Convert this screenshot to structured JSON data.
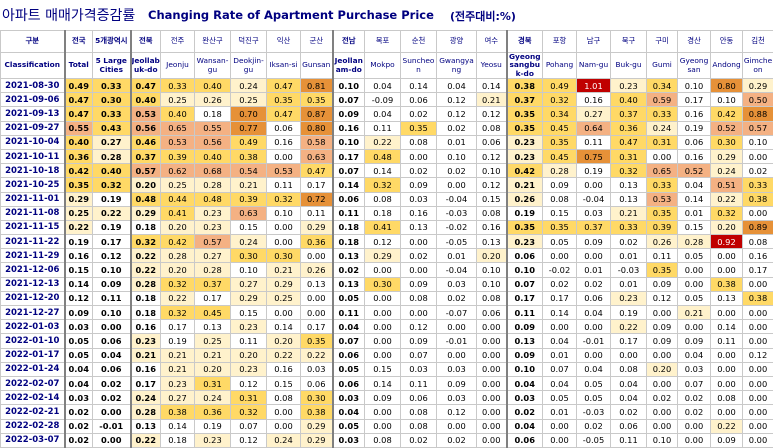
{
  "title": {
    "korean": "아파트 매매가격증감률",
    "english": "Changing Rate of Apartment Purchase Price",
    "unit": "(전주대비:%)"
  },
  "header": {
    "row1": [
      "구분",
      "전국",
      "5개광역시",
      "전북",
      "전주",
      "완산구",
      "덕진구",
      "익산",
      "군산",
      "전남",
      "목포",
      "순천",
      "광양",
      "여수",
      "경북",
      "포항",
      "남구",
      "북구",
      "구미",
      "경산",
      "안동",
      "김천"
    ],
    "row2": [
      "Classification",
      "Total",
      "5 Large Cities",
      "Jeollabuk-do",
      "Jeonju",
      "Wansan-gu",
      "Deokjin-gu",
      "Iksan-si",
      "Gunsan",
      "Jeollanam-do",
      "Mokpo",
      "Suncheon",
      "Gwangyang",
      "Yeosu",
      "Gyeongsangbuk-do",
      "Pohang",
      "Nam-gu",
      "Buk-gu",
      "Gumi",
      "Gyeongsan",
      "Andong",
      "Gimcheon"
    ]
  },
  "rows": [
    {
      "date": "2021-08-30",
      "values": [
        "0.49",
        "0.33",
        "0.47",
        "0.33",
        "0.40",
        "0.24",
        "0.47",
        "0.81",
        "0.10",
        "0.04",
        "0.14",
        "0.04",
        "0.14",
        "0.38",
        "0.49",
        "1.01",
        "0.23",
        "0.34",
        "0.10",
        "0.80",
        "0.29"
      ]
    },
    {
      "date": "2021-09-06",
      "values": [
        "0.47",
        "0.30",
        "0.40",
        "0.25",
        "0.26",
        "0.25",
        "0.35",
        "0.35",
        "0.07",
        "-0.09",
        "0.06",
        "0.12",
        "0.21",
        "0.37",
        "0.32",
        "0.16",
        "0.40",
        "0.59",
        "0.17",
        "0.10",
        "0.50"
      ]
    },
    {
      "date": "2021-09-13",
      "values": [
        "0.47",
        "0.33",
        "0.53",
        "0.40",
        "0.18",
        "0.70",
        "0.47",
        "0.87",
        "0.09",
        "0.04",
        "0.02",
        "0.12",
        "0.12",
        "0.35",
        "0.34",
        "0.27",
        "0.37",
        "0.33",
        "0.16",
        "0.42",
        "0.88"
      ]
    },
    {
      "date": "2021-09-27",
      "values": [
        "0.55",
        "0.43",
        "0.56",
        "0.65",
        "0.55",
        "0.77",
        "0.06",
        "0.80",
        "0.16",
        "0.11",
        "0.35",
        "0.02",
        "0.08",
        "0.35",
        "0.45",
        "0.64",
        "0.36",
        "0.24",
        "0.19",
        "0.52",
        "0.57"
      ]
    },
    {
      "date": "2021-10-04",
      "values": [
        "0.40",
        "0.27",
        "0.46",
        "0.53",
        "0.56",
        "0.49",
        "0.16",
        "0.58",
        "0.10",
        "0.22",
        "0.08",
        "0.01",
        "0.06",
        "0.23",
        "0.35",
        "0.11",
        "0.47",
        "0.31",
        "0.06",
        "0.30",
        "0.10"
      ]
    },
    {
      "date": "2021-10-11",
      "values": [
        "0.36",
        "0.28",
        "0.37",
        "0.39",
        "0.40",
        "0.38",
        "0.00",
        "0.63",
        "0.17",
        "0.48",
        "0.00",
        "0.10",
        "0.12",
        "0.23",
        "0.45",
        "0.75",
        "0.31",
        "0.00",
        "0.16",
        "0.29",
        "0.00"
      ]
    },
    {
      "date": "2021-10-18",
      "values": [
        "0.42",
        "0.40",
        "0.57",
        "0.62",
        "0.68",
        "0.54",
        "0.53",
        "0.47",
        "0.07",
        "0.14",
        "0.02",
        "0.02",
        "0.10",
        "0.42",
        "0.28",
        "0.19",
        "0.32",
        "0.65",
        "0.52",
        "0.24",
        "0.02"
      ]
    },
    {
      "date": "2021-10-25",
      "values": [
        "0.35",
        "0.32",
        "0.20",
        "0.25",
        "0.28",
        "0.21",
        "0.11",
        "0.17",
        "0.14",
        "0.32",
        "0.09",
        "0.00",
        "0.12",
        "0.21",
        "0.09",
        "0.00",
        "0.13",
        "0.33",
        "0.04",
        "0.51",
        "0.33"
      ]
    },
    {
      "date": "2021-11-01",
      "values": [
        "0.29",
        "0.19",
        "0.48",
        "0.44",
        "0.48",
        "0.39",
        "0.32",
        "0.72",
        "0.06",
        "0.08",
        "0.03",
        "-0.04",
        "0.15",
        "0.26",
        "0.08",
        "-0.04",
        "0.13",
        "0.53",
        "0.14",
        "0.22",
        "0.38"
      ]
    },
    {
      "date": "2021-11-08",
      "values": [
        "0.25",
        "0.22",
        "0.29",
        "0.41",
        "0.23",
        "0.63",
        "0.10",
        "0.11",
        "0.11",
        "0.18",
        "0.16",
        "-0.03",
        "0.08",
        "0.19",
        "0.15",
        "0.03",
        "0.21",
        "0.35",
        "0.01",
        "0.32",
        "0.00"
      ]
    },
    {
      "date": "2021-11-15",
      "values": [
        "0.22",
        "0.19",
        "0.18",
        "0.20",
        "0.23",
        "0.15",
        "0.00",
        "0.29",
        "0.18",
        "0.41",
        "0.13",
        "-0.02",
        "0.16",
        "0.35",
        "0.35",
        "0.37",
        "0.33",
        "0.39",
        "0.15",
        "0.20",
        "0.89"
      ]
    },
    {
      "date": "2021-11-22",
      "values": [
        "0.19",
        "0.17",
        "0.32",
        "0.42",
        "0.57",
        "0.24",
        "0.00",
        "0.36",
        "0.18",
        "0.12",
        "0.00",
        "-0.05",
        "0.13",
        "0.23",
        "0.05",
        "0.09",
        "0.02",
        "0.26",
        "0.28",
        "0.92",
        "0.08"
      ]
    },
    {
      "date": "2021-11-29",
      "values": [
        "0.16",
        "0.12",
        "0.22",
        "0.28",
        "0.27",
        "0.30",
        "0.30",
        "0.00",
        "0.13",
        "0.29",
        "0.02",
        "0.01",
        "0.20",
        "0.06",
        "0.00",
        "0.00",
        "0.01",
        "0.11",
        "0.05",
        "0.00",
        "0.16"
      ]
    },
    {
      "date": "2021-12-06",
      "values": [
        "0.15",
        "0.10",
        "0.22",
        "0.20",
        "0.28",
        "0.10",
        "0.21",
        "0.26",
        "0.02",
        "0.00",
        "0.00",
        "-0.04",
        "0.10",
        "0.10",
        "-0.02",
        "0.01",
        "-0.03",
        "0.35",
        "0.00",
        "0.00",
        "0.17"
      ]
    },
    {
      "date": "2021-12-13",
      "values": [
        "0.14",
        "0.09",
        "0.28",
        "0.32",
        "0.37",
        "0.27",
        "0.29",
        "0.13",
        "0.13",
        "0.30",
        "0.09",
        "0.03",
        "0.10",
        "0.07",
        "0.02",
        "0.02",
        "0.01",
        "0.09",
        "0.00",
        "0.38",
        "0.00"
      ]
    },
    {
      "date": "2021-12-20",
      "values": [
        "0.12",
        "0.11",
        "0.18",
        "0.22",
        "0.17",
        "0.29",
        "0.25",
        "0.00",
        "0.05",
        "0.00",
        "0.08",
        "0.02",
        "0.08",
        "0.17",
        "0.17",
        "0.06",
        "0.23",
        "0.12",
        "0.05",
        "0.13",
        "0.38"
      ]
    },
    {
      "date": "2021-12-27",
      "values": [
        "0.09",
        "0.10",
        "0.18",
        "0.32",
        "0.45",
        "0.15",
        "0.00",
        "0.00",
        "0.11",
        "0.00",
        "0.00",
        "-0.07",
        "0.06",
        "0.11",
        "0.14",
        "0.04",
        "0.19",
        "0.00",
        "0.21",
        "0.00",
        "0.00"
      ]
    },
    {
      "date": "2022-01-03",
      "values": [
        "0.03",
        "0.00",
        "0.16",
        "0.17",
        "0.13",
        "0.23",
        "0.14",
        "0.17",
        "0.04",
        "0.00",
        "0.12",
        "0.00",
        "0.00",
        "0.09",
        "0.00",
        "0.00",
        "0.22",
        "0.09",
        "0.00",
        "0.14",
        "0.00"
      ]
    },
    {
      "date": "2022-01-10",
      "values": [
        "0.05",
        "0.06",
        "0.23",
        "0.19",
        "0.25",
        "0.11",
        "0.20",
        "0.35",
        "0.07",
        "0.00",
        "0.09",
        "-0.01",
        "0.00",
        "0.13",
        "0.04",
        "-0.01",
        "0.17",
        "0.09",
        "0.09",
        "0.11",
        "0.00"
      ]
    },
    {
      "date": "2022-01-17",
      "values": [
        "0.05",
        "0.04",
        "0.21",
        "0.21",
        "0.21",
        "0.20",
        "0.22",
        "0.22",
        "0.06",
        "0.00",
        "0.07",
        "0.00",
        "0.00",
        "0.09",
        "0.01",
        "0.00",
        "0.00",
        "0.00",
        "0.04",
        "0.00",
        "0.12"
      ]
    },
    {
      "date": "2022-01-24",
      "values": [
        "0.04",
        "0.06",
        "0.16",
        "0.21",
        "0.20",
        "0.23",
        "0.16",
        "0.03",
        "0.05",
        "0.15",
        "0.03",
        "0.03",
        "0.00",
        "0.10",
        "0.07",
        "0.04",
        "0.08",
        "0.20",
        "0.03",
        "0.00",
        "0.00"
      ]
    },
    {
      "date": "2022-02-07",
      "values": [
        "0.04",
        "0.02",
        "0.17",
        "0.23",
        "0.31",
        "0.12",
        "0.15",
        "0.06",
        "0.06",
        "0.14",
        "0.11",
        "0.09",
        "0.00",
        "0.04",
        "0.04",
        "0.05",
        "0.04",
        "0.00",
        "0.07",
        "0.00",
        "0.00"
      ]
    },
    {
      "date": "2022-02-14",
      "values": [
        "0.03",
        "0.02",
        "0.24",
        "0.27",
        "0.24",
        "0.31",
        "0.08",
        "0.30",
        "0.03",
        "0.09",
        "0.06",
        "0.03",
        "0.00",
        "0.03",
        "0.05",
        "0.05",
        "0.04",
        "0.02",
        "0.02",
        "0.08",
        "0.00"
      ]
    },
    {
      "date": "2022-02-21",
      "values": [
        "0.02",
        "0.00",
        "0.28",
        "0.38",
        "0.36",
        "0.32",
        "0.00",
        "0.38",
        "0.04",
        "0.00",
        "0.08",
        "0.12",
        "0.00",
        "0.02",
        "0.01",
        "-0.03",
        "0.02",
        "0.00",
        "0.02",
        "0.00",
        "0.00"
      ]
    },
    {
      "date": "2022-02-28",
      "values": [
        "0.02",
        "-0.01",
        "0.13",
        "0.14",
        "0.19",
        "0.07",
        "0.00",
        "0.29",
        "0.05",
        "0.00",
        "0.08",
        "0.00",
        "0.00",
        "0.04",
        "0.00",
        "0.02",
        "0.06",
        "0.00",
        "0.00",
        "0.22",
        "0.00"
      ]
    },
    {
      "date": "2022-03-07",
      "values": [
        "0.02",
        "0.00",
        "0.22",
        "0.18",
        "0.23",
        "0.12",
        "0.24",
        "0.29",
        "0.03",
        "0.08",
        "0.02",
        "0.02",
        "0.00",
        "0.06",
        "0.00",
        "-0.05",
        "0.11",
        "0.10",
        "0.00",
        "0.09",
        "0.00"
      ]
    }
  ],
  "colors": {
    "title": "#000080",
    "header_text": "#000080",
    "highlight_low": "#fff2cc",
    "highlight_mid": "#ffd966",
    "highlight_high": "#f4b183",
    "highlight_top": "#e69138",
    "highlight_max": "#c00000"
  }
}
